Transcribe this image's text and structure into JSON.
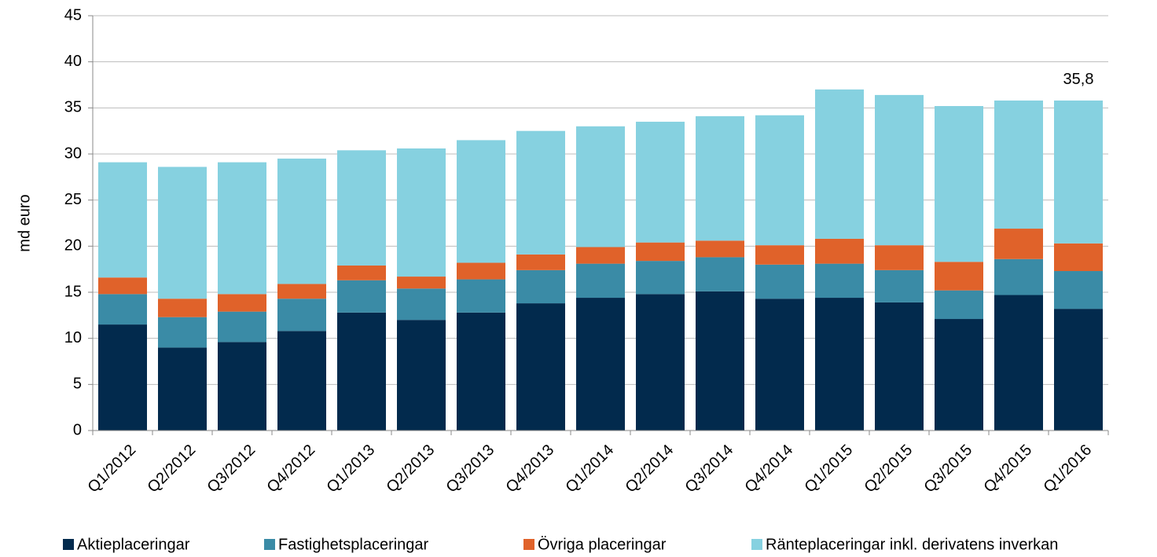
{
  "chart_data": {
    "type": "stacked_bar",
    "y_label": "md euro",
    "categories": [
      "Q1/2012",
      "Q2/2012",
      "Q3/2012",
      "Q4/2012",
      "Q1/2013",
      "Q2/2013",
      "Q3/2013",
      "Q4/2013",
      "Q1/2014",
      "Q2/2014",
      "Q3/2014",
      "Q4/2014",
      "Q1/2015",
      "Q2/2015",
      "Q3/2015",
      "Q4/2015",
      "Q1/2016"
    ],
    "series": [
      {
        "name": "Aktieplaceringar",
        "color": "#022a4d",
        "values": [
          11.5,
          9.0,
          9.6,
          10.8,
          12.8,
          12.0,
          12.8,
          13.8,
          14.4,
          14.8,
          15.1,
          14.3,
          14.4,
          13.9,
          12.1,
          14.7,
          13.2
        ]
      },
      {
        "name": "Fastighetsplaceringar",
        "color": "#3a8ba6",
        "values": [
          3.3,
          3.3,
          3.3,
          3.5,
          3.5,
          3.4,
          3.6,
          3.6,
          3.7,
          3.6,
          3.7,
          3.7,
          3.7,
          3.5,
          3.1,
          3.9,
          4.1
        ]
      },
      {
        "name": "Övriga placeringar",
        "color": "#e0622a",
        "values": [
          1.8,
          2.0,
          1.9,
          1.6,
          1.6,
          1.3,
          1.8,
          1.7,
          1.8,
          2.0,
          1.8,
          2.1,
          2.7,
          2.7,
          3.1,
          3.3,
          3.0
        ]
      },
      {
        "name": "Ränteplaceringar inkl. derivatens inverkan",
        "color": "#86d1e0",
        "values": [
          12.5,
          14.3,
          14.3,
          13.6,
          12.5,
          13.9,
          13.3,
          13.4,
          13.1,
          13.1,
          13.5,
          14.1,
          16.2,
          16.3,
          16.9,
          13.9,
          15.5
        ]
      }
    ],
    "annotations": [
      {
        "text": "35,8"
      }
    ],
    "ylim": [
      0,
      45
    ],
    "yticks": [
      0,
      5,
      10,
      15,
      20,
      25,
      30,
      35,
      40,
      45
    ],
    "grid": true,
    "legend": "bottom"
  }
}
